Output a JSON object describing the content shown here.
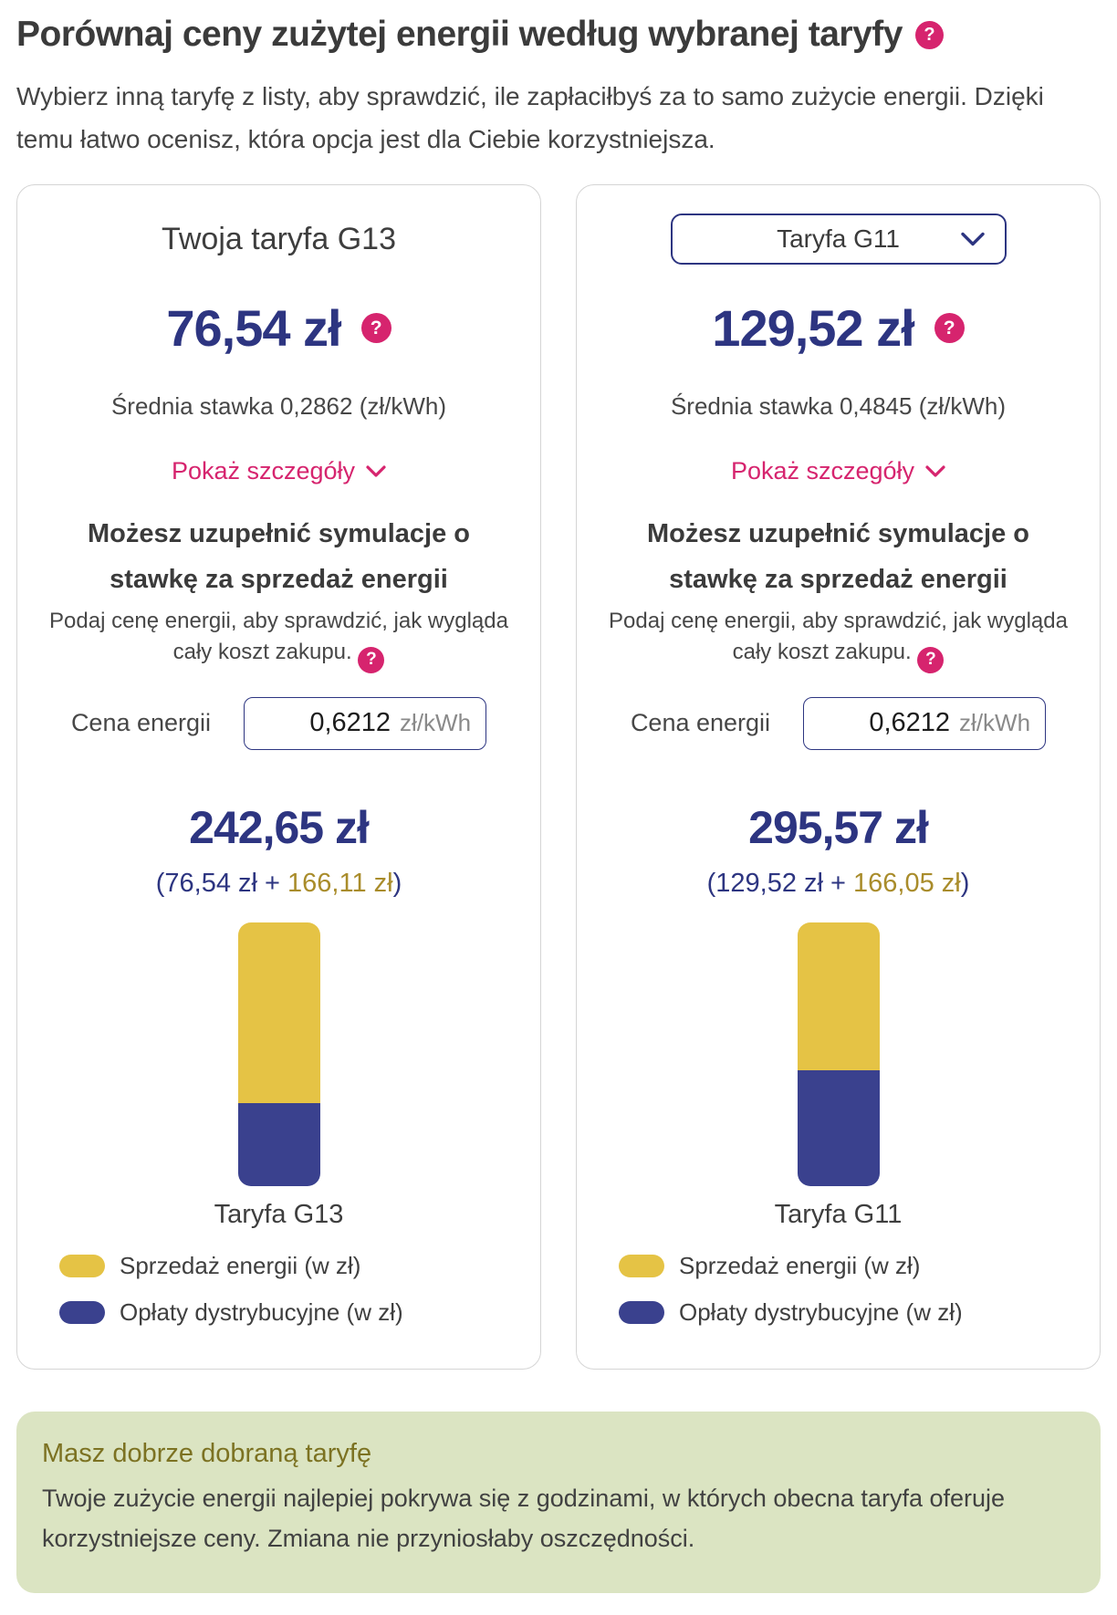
{
  "header": {
    "title": "Porównaj ceny zużytej energii według wybranej taryfy",
    "help_icon": "question-mark",
    "subtitle": "Wybierz inną taryfę z listy, aby sprawdzić, ile zapłaciłbyś za to samo zużycie energii. Dzięki temu łatwo ocenisz, która opcja jest dla Ciebie korzystniejsza."
  },
  "cards": [
    {
      "header_label": "Twoja taryfa G13",
      "price": "76,54 zł",
      "avg_rate": "Średnia stawka 0,2862 (zł/kWh)",
      "details_link": "Pokaż szczegóły",
      "sim_title": "Możesz uzupełnić symulacje o stawkę za sprzedaż energii",
      "sim_note": "Podaj cenę energii, aby sprawdzić, jak wygląda cały koszt zakupu.",
      "energy_price_label": "Cena energii",
      "energy_price_value": "0,6212",
      "energy_price_unit": "zł/kWh",
      "total": "242,65 zł",
      "breakdown_prefix": "(76,54 zł + ",
      "breakdown_energy": "166,11 zł",
      "breakdown_suffix": ")",
      "bar_label": "Taryfa G13"
    },
    {
      "selector_value": "Taryfa G11",
      "price": "129,52 zł",
      "avg_rate": "Średnia stawka 0,4845 (zł/kWh)",
      "details_link": "Pokaż szczegóły",
      "sim_title": "Możesz uzupełnić symulacje o stawkę za sprzedaż energii",
      "sim_note": "Podaj cenę energii, aby sprawdzić, jak wygląda cały koszt zakupu.",
      "energy_price_label": "Cena energii",
      "energy_price_value": "0,6212",
      "energy_price_unit": "zł/kWh",
      "total": "295,57 zł",
      "breakdown_prefix": "(129,52 zł + ",
      "breakdown_energy": "166,05 zł",
      "breakdown_suffix": ")",
      "bar_label": "Taryfa G11"
    }
  ],
  "legend": {
    "items": [
      {
        "label": "Sprzedaż energii (w zł)",
        "color": "#e5c345"
      },
      {
        "label": "Opłaty dystrybucyjne (w zł)",
        "color": "#3a418e"
      }
    ]
  },
  "banner": {
    "title": "Masz dobrze dobraną taryfę",
    "body": "Twoje zużycie energii najlepiej pokrywa się z godzinami, w których obecna taryfa oferuje korzystniejsze ceny. Zmiana nie przyniosłaby oszczędności."
  },
  "chart_data": [
    {
      "type": "bar",
      "stacked": true,
      "categories": [
        "Taryfa G13"
      ],
      "series": [
        {
          "name": "Sprzedaż energii (w zł)",
          "values": [
            166.11
          ],
          "color": "#e5c345"
        },
        {
          "name": "Opłaty dystrybucyjne (w zł)",
          "values": [
            76.54
          ],
          "color": "#3a418e"
        }
      ],
      "total": 242.65,
      "title": "Taryfa G13",
      "legend_position": "bottom-left",
      "grid": false
    },
    {
      "type": "bar",
      "stacked": true,
      "categories": [
        "Taryfa G11"
      ],
      "series": [
        {
          "name": "Sprzedaż energii (w zł)",
          "values": [
            166.05
          ],
          "color": "#e5c345"
        },
        {
          "name": "Opłaty dystrybucyjne (w zł)",
          "values": [
            129.52
          ],
          "color": "#3a418e"
        }
      ],
      "total": 295.57,
      "title": "Taryfa G11",
      "legend_position": "bottom-left",
      "grid": false
    }
  ],
  "colors": {
    "navy": "#2d3581",
    "pink": "#d6246e",
    "bar_yellow": "#e5c345",
    "bar_blue": "#3a418e",
    "gold_text": "#a98c2b",
    "banner_bg": "#dbe4c2",
    "banner_title": "#7c7222"
  }
}
